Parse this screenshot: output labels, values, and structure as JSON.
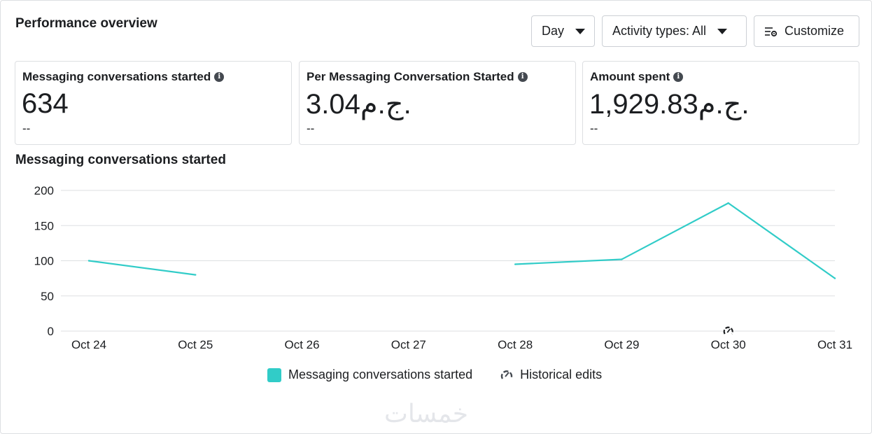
{
  "header": {
    "title": "Performance overview",
    "day_label": "Day",
    "activity_label": "Activity types: All",
    "customize_label": "Customize"
  },
  "cards": [
    {
      "label": "Messaging conversations started",
      "value": "634",
      "sub": "--"
    },
    {
      "label": "Per Messaging Conversation Started",
      "value": "3.04ج.م.",
      "sub": "--"
    },
    {
      "label": "Amount spent",
      "value": "1,929.83ج.م.",
      "sub": "--"
    }
  ],
  "chart_title": "Messaging conversations started",
  "legend": {
    "series_label": "Messaging conversations started",
    "edits_label": "Historical edits"
  },
  "colors": {
    "series": "#31ccc8",
    "grid": "#dddfe2"
  },
  "icons": {
    "info": "info-icon",
    "customize": "sliders-gear-icon",
    "edits": "historical-edits-icon",
    "caret": "caret-down-icon"
  },
  "watermark": "خمسات",
  "chart_data": {
    "type": "line",
    "title": "Messaging conversations started",
    "categories": [
      "Oct 24",
      "Oct 25",
      "Oct 26",
      "Oct 27",
      "Oct 28",
      "Oct 29",
      "Oct 30",
      "Oct 31"
    ],
    "series": [
      {
        "name": "Messaging conversations started",
        "values": [
          100,
          80,
          null,
          null,
          95,
          102,
          182,
          75
        ]
      }
    ],
    "yticks": [
      0,
      50,
      100,
      150,
      200
    ],
    "ylim": [
      0,
      200
    ],
    "grid": true,
    "legend": "bottom",
    "historical_edit_at": "Oct 30"
  }
}
